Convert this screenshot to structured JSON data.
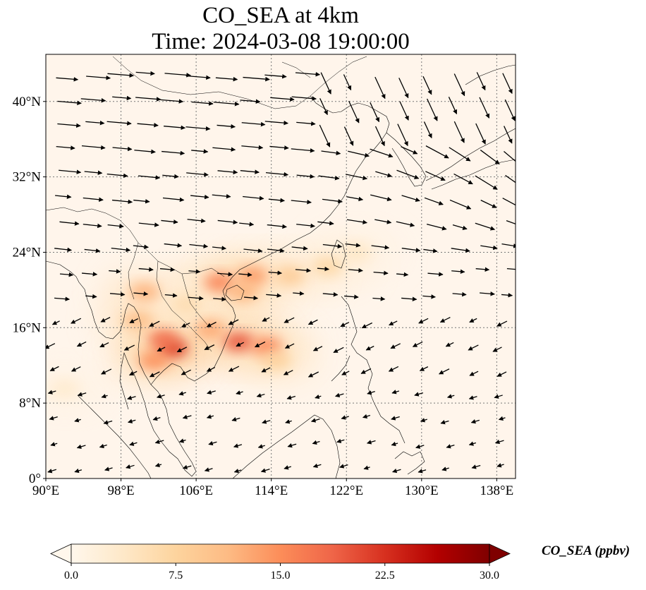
{
  "title": {
    "line1": "CO_SEA at 4km",
    "line2": "Time: 2024-03-08 19:00:00"
  },
  "map": {
    "type": "filled-contour map with wind vectors",
    "lon_range": [
      90,
      140
    ],
    "lat_range": [
      0,
      45
    ],
    "lon_ticks": [
      {
        "value": 90,
        "label": "90°E"
      },
      {
        "value": 98,
        "label": "98°E"
      },
      {
        "value": 106,
        "label": "106°E"
      },
      {
        "value": 114,
        "label": "114°E"
      },
      {
        "value": 122,
        "label": "122°E"
      },
      {
        "value": 130,
        "label": "130°E"
      },
      {
        "value": 138,
        "label": "138°E"
      }
    ],
    "lat_ticks": [
      {
        "value": 0,
        "label": "0°"
      },
      {
        "value": 8,
        "label": "8°N"
      },
      {
        "value": 16,
        "label": "16°N"
      },
      {
        "value": 24,
        "label": "24°N"
      },
      {
        "value": 32,
        "label": "32°N"
      },
      {
        "value": 40,
        "label": "40°N"
      }
    ],
    "gridlines": "dotted",
    "background_color": "#fff5eb",
    "coastline_color": "#000000",
    "arrow_color": "#000000"
  },
  "colorbar": {
    "label": "CO_SEA (ppbv)",
    "min": 0,
    "max": 30,
    "extend": "both",
    "colormap": "OrRd",
    "colors": [
      "#fff7ec",
      "#fee8c8",
      "#fdd49e",
      "#fdbb84",
      "#fc8d59",
      "#ef6548",
      "#d7301f",
      "#b30000",
      "#7f0000"
    ],
    "ticks": [
      {
        "value": 0,
        "label": "0.0"
      },
      {
        "value": 7.5,
        "label": "7.5"
      },
      {
        "value": 15,
        "label": "15.0"
      },
      {
        "value": 22.5,
        "label": "22.5"
      },
      {
        "value": 30,
        "label": "30.0"
      }
    ]
  },
  "plumes": [
    {
      "lon": 103.5,
      "lat": 13.8,
      "value": 22
    },
    {
      "lon": 102.5,
      "lat": 14.8,
      "value": 18
    },
    {
      "lon": 101.5,
      "lat": 12.5,
      "value": 15
    },
    {
      "lon": 110.5,
      "lat": 14.5,
      "value": 20
    },
    {
      "lon": 113.5,
      "lat": 14.0,
      "value": 16
    },
    {
      "lon": 107.5,
      "lat": 15.8,
      "value": 13
    },
    {
      "lon": 108.5,
      "lat": 20.8,
      "value": 16
    },
    {
      "lon": 112.0,
      "lat": 21.5,
      "value": 14
    },
    {
      "lon": 111.0,
      "lat": 19.8,
      "value": 12
    },
    {
      "lon": 116.0,
      "lat": 21.5,
      "value": 9
    },
    {
      "lon": 120.0,
      "lat": 22.5,
      "value": 7
    },
    {
      "lon": 100.5,
      "lat": 19.8,
      "value": 12
    },
    {
      "lon": 99.8,
      "lat": 16.8,
      "value": 11
    },
    {
      "lon": 123.0,
      "lat": 24.0,
      "value": 4
    },
    {
      "lon": 114.5,
      "lat": 12.5,
      "value": 8
    },
    {
      "lon": 105.0,
      "lat": 18.5,
      "value": 6
    },
    {
      "lon": 92.0,
      "lat": 9.5,
      "value": 3
    }
  ]
}
